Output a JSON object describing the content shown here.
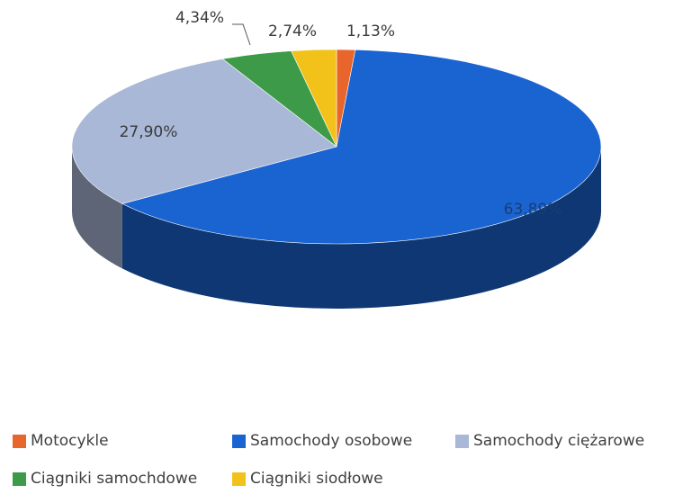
{
  "chart_data": {
    "type": "pie",
    "categories": [
      "Motocykle",
      "Samochody osobowe",
      "Samochody ciężarowe",
      "Ciągniki samochdowe",
      "Ciągniki siodłowe"
    ],
    "values": [
      1.13,
      63.89,
      27.9,
      4.34,
      2.74
    ],
    "data_labels": [
      "1,13%",
      "63,89%",
      "27,90%",
      "4,34%",
      "2,74%"
    ],
    "colors": [
      "#e8652b",
      "#1a64d2",
      "#a9b8d6",
      "#3c9a48",
      "#f2c21a"
    ],
    "legend_position": "bottom",
    "style": "3d"
  },
  "legend": {
    "items": [
      {
        "label": "Motocykle",
        "color": "#e8652b"
      },
      {
        "label": "Samochody osobowe",
        "color": "#1a64d2"
      },
      {
        "label": "Samochody ciężarowe",
        "color": "#a9b8d6"
      },
      {
        "label": "Ciągniki samochdowe",
        "color": "#3c9a48"
      },
      {
        "label": "Ciągniki siodłowe",
        "color": "#f2c21a"
      }
    ]
  }
}
